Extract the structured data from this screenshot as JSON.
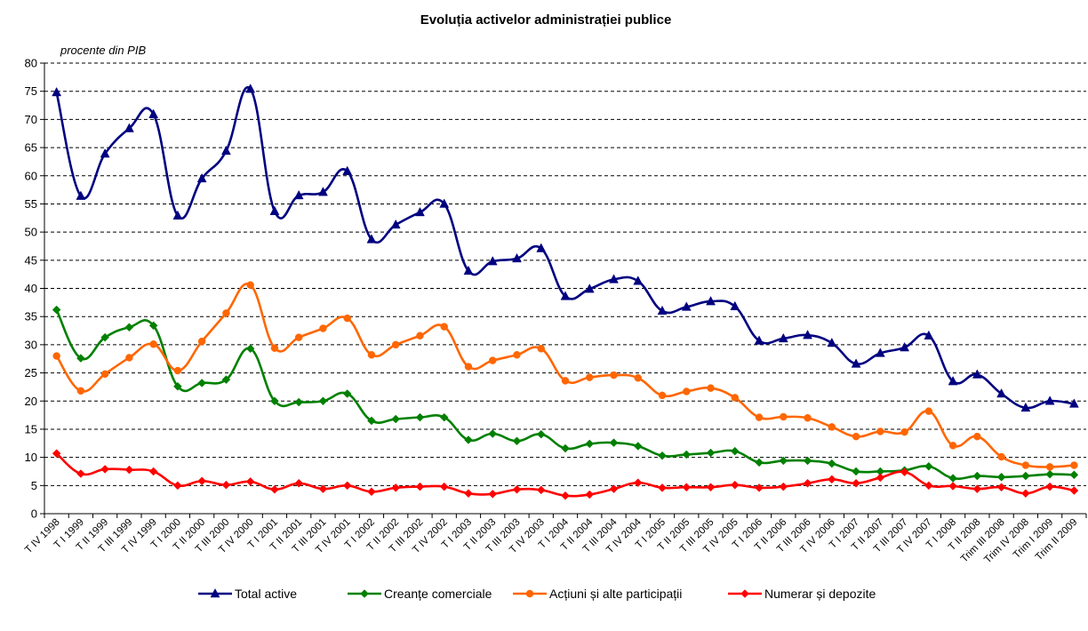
{
  "chart_data": {
    "type": "line",
    "title": "Evoluția activelor administrației publice",
    "unit_label": "procente din PIB",
    "xlabel": "",
    "ylabel": "",
    "ylim": [
      0,
      80
    ],
    "yticks": [
      0,
      5,
      10,
      15,
      20,
      25,
      30,
      35,
      40,
      45,
      50,
      55,
      60,
      65,
      70,
      75,
      80
    ],
    "grid": "horizontal dashed",
    "legend_position": "bottom",
    "categories": [
      "T IV 1998",
      "T I 1999",
      "T II 1999",
      "T III 1999",
      "T IV 1999",
      "T I 2000",
      "T II 2000",
      "T III 2000",
      "T IV 2000",
      "T I 2001",
      "T II 2001",
      "T III 2001",
      "T IV 2001",
      "T I 2002",
      "T II 2002",
      "T III 2002",
      "T IV 2002",
      "T I 2003",
      "T II 2003",
      "T III 2003",
      "T IV 2003",
      "T I 2004",
      "T II 2004",
      "T III 2004",
      "T IV 2004",
      "T I 2005",
      "T II 2005",
      "T III 2005",
      "T IV 2005",
      "T I 2006",
      "T II 2006",
      "T III 2006",
      "T IV 2006",
      "T I 2007",
      "T II 2007",
      "T III 2007",
      "T IV 2007",
      "T I 2008",
      "T II 2008",
      "Trim III 2008",
      "Trim IV 2008",
      "Trim I 2009",
      "Trim II 2009"
    ],
    "series": [
      {
        "name": "Total active",
        "color": "#000080",
        "marker": "triangle",
        "values": [
          74.8,
          56.4,
          63.9,
          68.4,
          70.9,
          52.9,
          59.5,
          64.4,
          75.4,
          53.7,
          56.5,
          57.1,
          60.8,
          48.7,
          51.3,
          53.5,
          55.0,
          43.1,
          44.8,
          45.3,
          47.1,
          38.6,
          39.9,
          41.6,
          41.3,
          36.0,
          36.7,
          37.7,
          36.8,
          30.7,
          31.1,
          31.7,
          30.3,
          26.6,
          28.5,
          29.5,
          31.6,
          23.5,
          24.7,
          21.3,
          18.8,
          20.0,
          19.5
        ]
      },
      {
        "name": "Creanțe comerciale",
        "color": "#008000",
        "marker": "diamond",
        "values": [
          36.2,
          27.6,
          31.3,
          33.1,
          33.4,
          22.6,
          23.2,
          23.8,
          29.3,
          20.0,
          19.8,
          20.0,
          21.3,
          16.5,
          16.8,
          17.1,
          17.1,
          13.1,
          14.2,
          12.9,
          14.1,
          11.6,
          12.4,
          12.6,
          12.0,
          10.3,
          10.5,
          10.8,
          11.1,
          9.1,
          9.4,
          9.4,
          8.9,
          7.5,
          7.5,
          7.7,
          8.4,
          6.3,
          6.7,
          6.5,
          6.7,
          7.0,
          6.9
        ]
      },
      {
        "name": "Acțiuni și alte participații",
        "color": "#FF6600",
        "marker": "circle",
        "values": [
          28.0,
          21.8,
          24.8,
          27.7,
          30.1,
          25.4,
          30.6,
          35.6,
          40.6,
          29.4,
          31.3,
          32.9,
          34.7,
          28.2,
          30.0,
          31.6,
          33.2,
          26.1,
          27.2,
          28.2,
          29.3,
          23.6,
          24.2,
          24.6,
          24.1,
          21.0,
          21.7,
          22.3,
          20.6,
          17.1,
          17.2,
          17.0,
          15.4,
          13.7,
          14.6,
          14.5,
          18.2,
          12.1,
          13.7,
          10.1,
          8.6,
          8.3,
          8.6
        ]
      },
      {
        "name": "Numerar și depozite",
        "color": "#FF0000",
        "marker": "diamond",
        "values": [
          10.7,
          7.1,
          7.9,
          7.8,
          7.5,
          5.0,
          5.8,
          5.1,
          5.7,
          4.3,
          5.4,
          4.4,
          5.0,
          3.9,
          4.6,
          4.8,
          4.8,
          3.6,
          3.5,
          4.3,
          4.2,
          3.2,
          3.4,
          4.4,
          5.5,
          4.6,
          4.7,
          4.7,
          5.1,
          4.6,
          4.8,
          5.4,
          6.1,
          5.4,
          6.4,
          7.4,
          5.0,
          4.9,
          4.4,
          4.7,
          3.6,
          4.8,
          4.1
        ]
      }
    ]
  }
}
